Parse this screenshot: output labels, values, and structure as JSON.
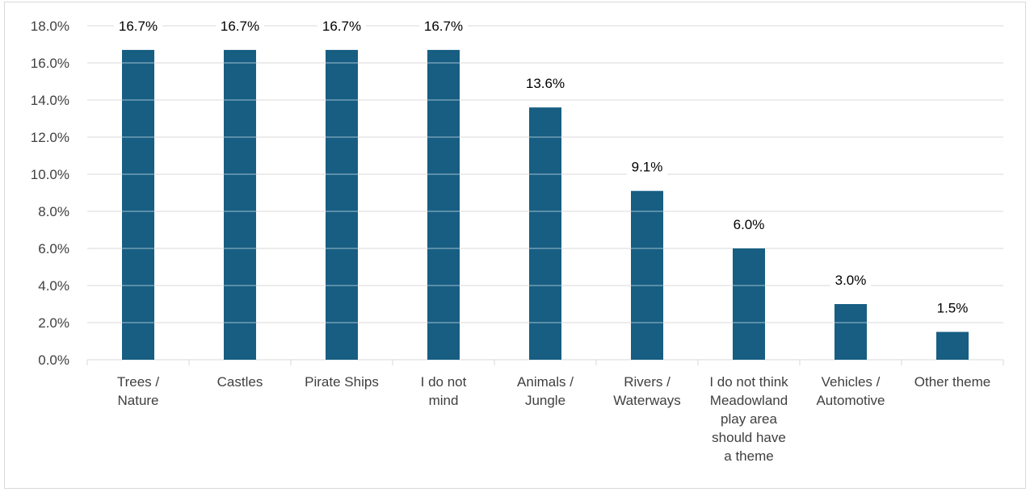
{
  "chart_data": {
    "type": "bar",
    "title": "",
    "xlabel": "",
    "ylabel": "",
    "categories": [
      [
        "Trees /",
        "Nature"
      ],
      [
        "Castles"
      ],
      [
        "Pirate Ships"
      ],
      [
        "I do not",
        "mind"
      ],
      [
        "Animals /",
        "Jungle"
      ],
      [
        "Rivers /",
        "Waterways"
      ],
      [
        "I do not think",
        "Meadowland",
        "play area",
        "should have",
        "a theme"
      ],
      [
        "Vehicles /",
        "Automotive"
      ],
      [
        "Other theme"
      ]
    ],
    "values": [
      16.7,
      16.7,
      16.7,
      16.7,
      13.6,
      9.1,
      6.0,
      3.0,
      1.5
    ],
    "data_labels": [
      "16.7%",
      "16.7%",
      "16.7%",
      "16.7%",
      "13.6%",
      "9.1%",
      "6.0%",
      "3.0%",
      "1.5%"
    ],
    "yticks": [
      "0.0%",
      "2.0%",
      "4.0%",
      "6.0%",
      "8.0%",
      "10.0%",
      "12.0%",
      "14.0%",
      "16.0%",
      "18.0%"
    ],
    "ylim": [
      0,
      18
    ],
    "grid": true,
    "legend": "none",
    "bar_color": "#175e82",
    "grid_color": "#d9d9d9"
  }
}
